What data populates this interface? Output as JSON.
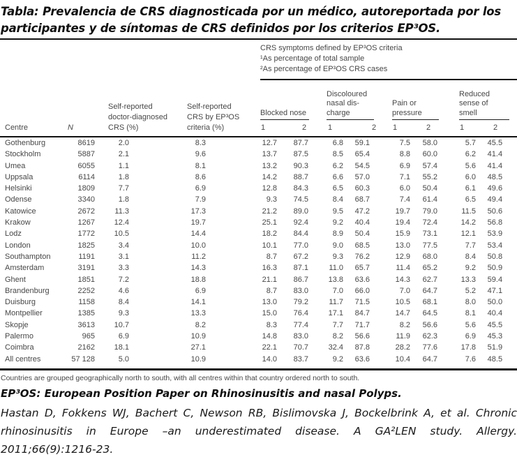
{
  "title": {
    "line1": "Tabla: Prevalencia de CRS diagnosticada por un médico, autoreportada por los",
    "line2": "participantes y de síntomas de CRS definidos por los criterios EP³OS."
  },
  "table": {
    "notes": {
      "line1": "CRS symptoms defined by EP³OS criteria",
      "line2": "¹As percentage of total sample",
      "line3": "²As percentage of EP³OS CRS cases"
    },
    "headers": {
      "centre": "Centre",
      "n": "N",
      "dd": [
        "Self-reported",
        "doctor-diagnosed",
        "CRS (%)"
      ],
      "ep": [
        "Self-reported",
        "CRS by EP³OS",
        "criteria (%)"
      ],
      "groups": [
        {
          "name": "blocked-nose",
          "lines": [
            "Blocked nose"
          ]
        },
        {
          "name": "discoloured-nasal-discharge",
          "lines": [
            "Discoloured",
            "nasal dis-",
            "charge"
          ]
        },
        {
          "name": "pain-or-pressure",
          "lines": [
            "Pain or",
            "pressure"
          ]
        },
        {
          "name": "reduced-sense-of-smell",
          "lines": [
            "Reduced",
            "sense of",
            "smell"
          ]
        }
      ],
      "sub": [
        "1",
        "2",
        "1",
        "2",
        "1",
        "2",
        "1",
        "2"
      ]
    },
    "rows": [
      [
        "Gothenburg",
        "8619",
        "2.0",
        "8.3",
        "12.7",
        "87.7",
        "6.8",
        "59.1",
        "7.5",
        "58.0",
        "5.7",
        "45.5"
      ],
      [
        "Stockholm",
        "5887",
        "2.1",
        "9.6",
        "13.7",
        "87.5",
        "8.5",
        "65.4",
        "8.8",
        "60.0",
        "6.2",
        "41.4"
      ],
      [
        "Umea",
        "6055",
        "1.1",
        "8.1",
        "13.2",
        "90.3",
        "6.2",
        "54.5",
        "6.9",
        "57.4",
        "5.6",
        "41.4"
      ],
      [
        "Uppsala",
        "6114",
        "1.8",
        "8.6",
        "14.2",
        "88.7",
        "6.6",
        "57.0",
        "7.1",
        "55.2",
        "6.0",
        "48.5"
      ],
      [
        "Helsinki",
        "1809",
        "7.7",
        "6.9",
        "12.8",
        "84.3",
        "6.5",
        "60.3",
        "6.0",
        "50.4",
        "6.1",
        "49.6"
      ],
      [
        "Odense",
        "3340",
        "1.8",
        "7.9",
        "9.3",
        "74.5",
        "8.4",
        "68.7",
        "7.4",
        "61.4",
        "6.5",
        "49.4"
      ],
      [
        "Katowice",
        "2672",
        "11.3",
        "17.3",
        "21.2",
        "89.0",
        "9.5",
        "47.2",
        "19.7",
        "79.0",
        "11.5",
        "50.6"
      ],
      [
        "Krakow",
        "1267",
        "12.4",
        "19.7",
        "25.1",
        "92.4",
        "9.2",
        "40.4",
        "19.4",
        "72.4",
        "14.2",
        "56.8"
      ],
      [
        "Lodz",
        "1772",
        "10.5",
        "14.4",
        "18.2",
        "84.4",
        "8.9",
        "50.4",
        "15.9",
        "73.1",
        "12.1",
        "53.9"
      ],
      [
        "London",
        "1825",
        "3.4",
        "10.0",
        "10.1",
        "77.0",
        "9.0",
        "68.5",
        "13.0",
        "77.5",
        "7.7",
        "53.4"
      ],
      [
        "Southampton",
        "1191",
        "3.1",
        "11.2",
        "8.7",
        "67.2",
        "9.3",
        "76.2",
        "12.9",
        "68.0",
        "8.4",
        "50.8"
      ],
      [
        "Amsterdam",
        "3191",
        "3.3",
        "14.3",
        "16.3",
        "87.1",
        "11.0",
        "65.7",
        "11.4",
        "65.2",
        "9.2",
        "50.9"
      ],
      [
        "Ghent",
        "1851",
        "7.2",
        "18.8",
        "21.1",
        "86.7",
        "13.8",
        "63.6",
        "14.3",
        "62.7",
        "13.3",
        "59.4"
      ],
      [
        "Brandenburg",
        "2252",
        "4.6",
        "6.9",
        "8.7",
        "83.0",
        "7.0",
        "66.0",
        "7.0",
        "64.7",
        "5.2",
        "47.1"
      ],
      [
        "Duisburg",
        "1158",
        "8.4",
        "14.1",
        "13.0",
        "79.2",
        "11.7",
        "71.5",
        "10.5",
        "68.1",
        "8.0",
        "50.0"
      ],
      [
        "Montpellier",
        "1385",
        "9.3",
        "13.3",
        "15.0",
        "76.4",
        "17.1",
        "84.7",
        "14.7",
        "64.5",
        "8.1",
        "40.4"
      ],
      [
        "Skopje",
        "3613",
        "10.7",
        "8.2",
        "8.3",
        "77.4",
        "7.7",
        "71.7",
        "8.2",
        "56.6",
        "5.6",
        "45.5"
      ],
      [
        "Palermo",
        "965",
        "6.9",
        "10.9",
        "14.8",
        "83.0",
        "8.2",
        "56.6",
        "11.9",
        "62.3",
        "6.9",
        "45.3"
      ],
      [
        "Coimbra",
        "2162",
        "18.1",
        "27.1",
        "22.1",
        "70.7",
        "32.4",
        "87.8",
        "28.2",
        "77.6",
        "17.8",
        "51.9"
      ],
      [
        "All centres",
        "57 128",
        "5.0",
        "10.9",
        "14.0",
        "83.7",
        "9.2",
        "63.6",
        "10.4",
        "64.7",
        "7.6",
        "48.5"
      ]
    ]
  },
  "footnotes": {
    "grouping": "Countries are grouped geographically north to south, with all centres within that country ordered north to south.",
    "ep3os": "EP³OS: European Position Paper on Rhinosinusitis and nasal Polyps.",
    "reference_line1": "Hastan D, Fokkens WJ, Bachert C, Newson RB, Bislimovska J, Bockelbrink A, et al. Chronic",
    "reference_line2": "rhinosinusitis in Europe –an underestimated disease. A GA²LEN study. Allergy.",
    "reference_line3": "2011;66(9):1216-23."
  },
  "colors": {
    "rule": "#111111",
    "text": "#474747",
    "ink": "#111111"
  }
}
